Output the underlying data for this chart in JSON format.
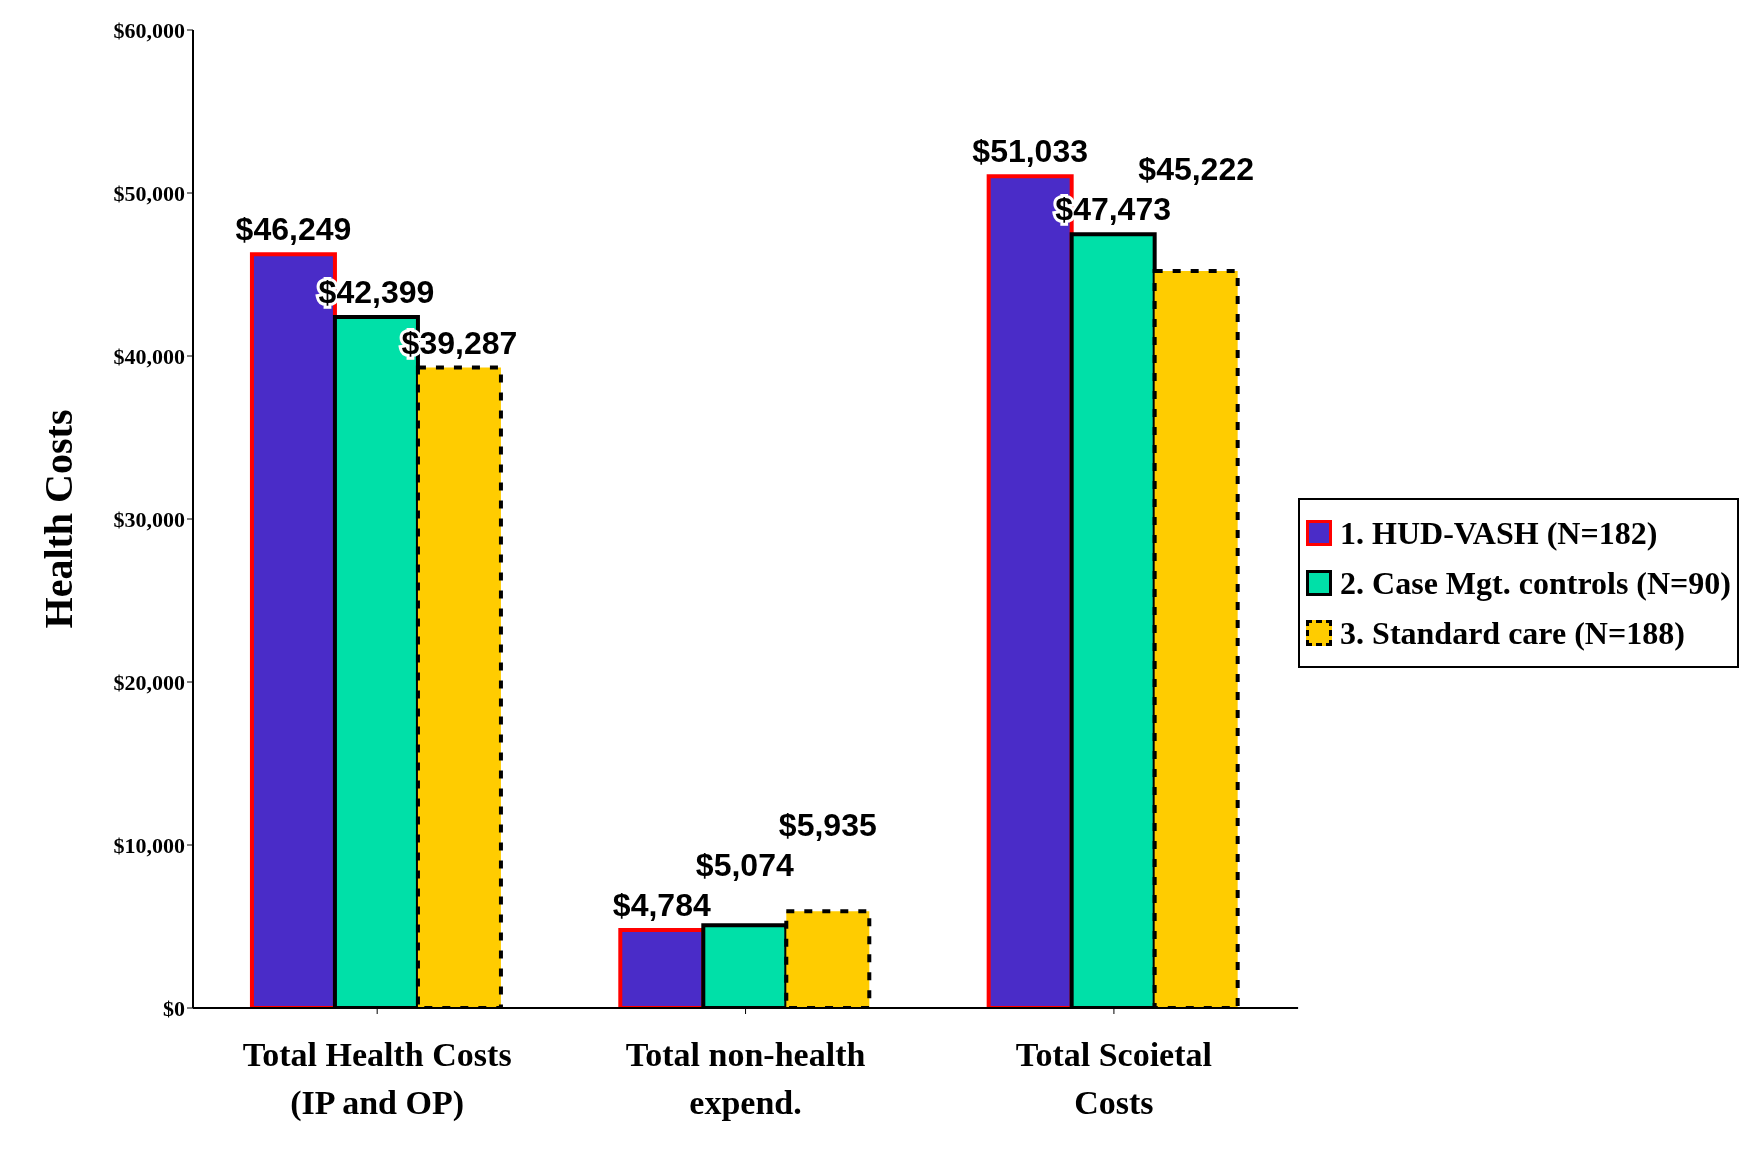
{
  "chart_data": {
    "type": "bar",
    "ylabel": "Health Costs",
    "categories": [
      "Total Health Costs (IP and OP)",
      "Total non-health expend.",
      "Total Scoietal Costs"
    ],
    "series": [
      {
        "name": "1. HUD-VASH (N=182)",
        "color": "#4a2cc8",
        "values": [
          46249,
          4784,
          51033
        ],
        "value_labels": [
          "$46,249",
          "$4,784",
          "$51,033"
        ]
      },
      {
        "name": "2. Case Mgt. controls (N=90)",
        "color": "#00e0a8",
        "values": [
          42399,
          5074,
          47473
        ],
        "value_labels": [
          "$42,399",
          "$5,074",
          "$47,473"
        ]
      },
      {
        "name": "3. Standard care (N=188)",
        "color": "#ffcc00",
        "values": [
          39287,
          5935,
          45222
        ],
        "value_labels": [
          "$39,287",
          "$5,935",
          "$45,222"
        ]
      }
    ],
    "ylim": [
      0,
      60000
    ],
    "yticks": [
      {
        "value": 0,
        "label": "$0"
      },
      {
        "value": 10000,
        "label": "$10,000"
      },
      {
        "value": 20000,
        "label": "$20,000"
      },
      {
        "value": 30000,
        "label": "$30,000"
      },
      {
        "value": 40000,
        "label": "$40,000"
      },
      {
        "value": 50000,
        "label": "$50,000"
      },
      {
        "value": 60000,
        "label": "$60,000"
      }
    ],
    "grid": false,
    "legend": "right"
  }
}
